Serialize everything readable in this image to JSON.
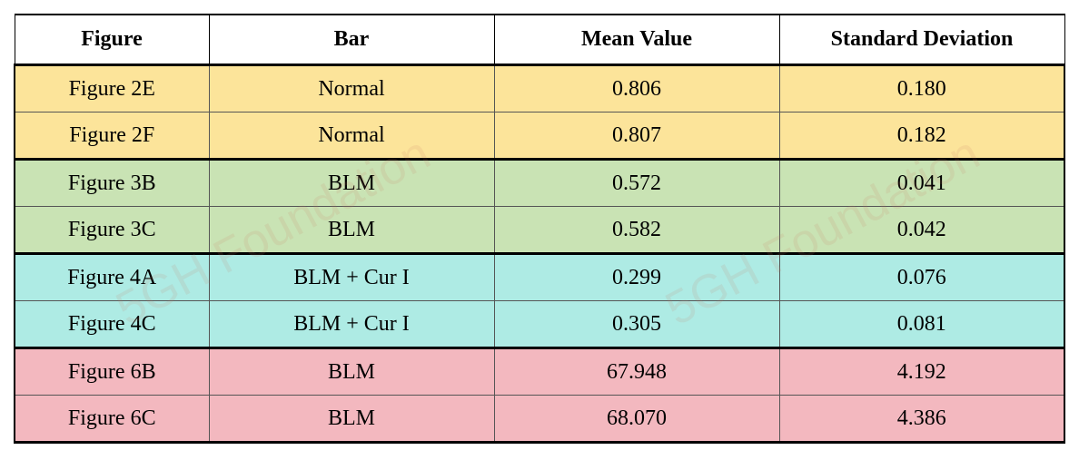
{
  "table": {
    "headers": [
      "Figure",
      "Bar",
      "Mean Value",
      "Standard Deviation"
    ],
    "rows": [
      {
        "figure": "Figure 2E",
        "bar": "Normal",
        "mean": "0.806",
        "sd": "0.180",
        "color": "#fce49a"
      },
      {
        "figure": "Figure 2F",
        "bar": "Normal",
        "mean": "0.807",
        "sd": "0.182",
        "color": "#fce49a"
      },
      {
        "figure": "Figure 3B",
        "bar": "BLM",
        "mean": "0.572",
        "sd": "0.041",
        "color": "#c9e3b4"
      },
      {
        "figure": "Figure 3C",
        "bar": "BLM",
        "mean": "0.582",
        "sd": "0.042",
        "color": "#c9e3b4"
      },
      {
        "figure": "Figure 4A",
        "bar": "BLM + Cur I",
        "mean": "0.299",
        "sd": "0.076",
        "color": "#aeebe4"
      },
      {
        "figure": "Figure 4C",
        "bar": "BLM + Cur I",
        "mean": "0.305",
        "sd": "0.081",
        "color": "#aeebe4"
      },
      {
        "figure": "Figure 6B",
        "bar": "BLM",
        "mean": "67.948",
        "sd": "4.192",
        "color": "#f3b8bf"
      },
      {
        "figure": "Figure 6C",
        "bar": "BLM",
        "mean": "68.070",
        "sd": "4.386",
        "color": "#f3b8bf"
      }
    ]
  },
  "watermark": "5GH Foundation"
}
